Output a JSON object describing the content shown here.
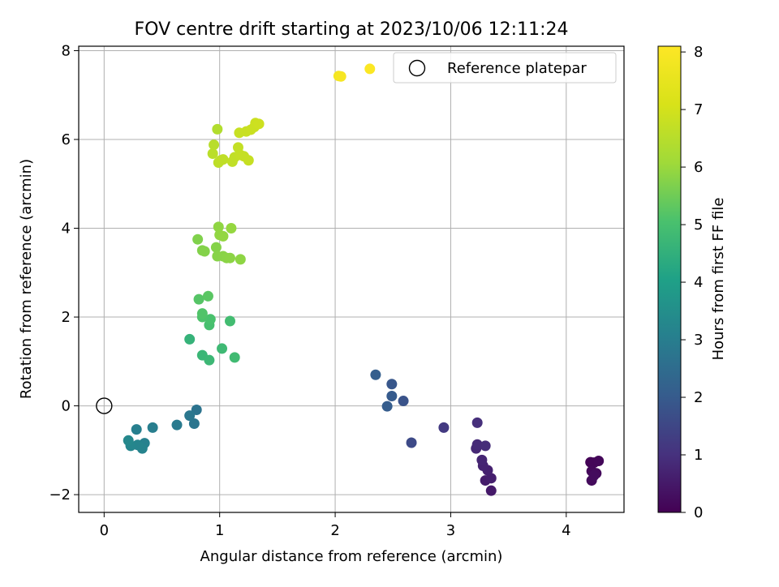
{
  "chart_data": {
    "type": "scatter",
    "title": "FOV centre drift starting at 2023/10/06 12:11:24",
    "xlabel": "Angular distance from reference (arcmin)",
    "ylabel": "Rotation from reference (arcmin)",
    "xlim": [
      -0.22,
      4.5
    ],
    "ylim": [
      -2.4,
      8.1
    ],
    "xticks": [
      0,
      1,
      2,
      3,
      4
    ],
    "yticks": [
      -2,
      0,
      2,
      4,
      6,
      8
    ],
    "ytick_labels": [
      "−2",
      "0",
      "2",
      "4",
      "6",
      "8"
    ],
    "grid": true,
    "legend": {
      "position": "top-right",
      "entries": [
        "Reference platepar"
      ]
    },
    "reference_point": {
      "x": 0,
      "y": 0,
      "label": "Reference platepar"
    },
    "colorbar": {
      "label": "Hours from first FF file",
      "range": [
        0,
        8.1
      ],
      "ticks": [
        0,
        1,
        2,
        3,
        4,
        5,
        6,
        7,
        8
      ],
      "colormap": "viridis"
    },
    "points": [
      {
        "x": 4.21,
        "y": -1.27,
        "c": 0.05
      },
      {
        "x": 4.24,
        "y": -1.28,
        "c": 0.1
      },
      {
        "x": 4.28,
        "y": -1.24,
        "c": 0.12
      },
      {
        "x": 4.22,
        "y": -1.47,
        "c": 0.15
      },
      {
        "x": 4.26,
        "y": -1.52,
        "c": 0.18
      },
      {
        "x": 4.22,
        "y": -1.68,
        "c": 0.2
      },
      {
        "x": 4.24,
        "y": -1.57,
        "c": 0.22
      },
      {
        "x": 3.35,
        "y": -1.91,
        "c": 0.5
      },
      {
        "x": 3.3,
        "y": -1.68,
        "c": 0.55
      },
      {
        "x": 3.35,
        "y": -1.63,
        "c": 0.6
      },
      {
        "x": 3.32,
        "y": -1.45,
        "c": 0.65
      },
      {
        "x": 3.28,
        "y": -1.35,
        "c": 0.7
      },
      {
        "x": 3.27,
        "y": -1.22,
        "c": 0.75
      },
      {
        "x": 3.22,
        "y": -0.96,
        "c": 0.8
      },
      {
        "x": 3.23,
        "y": -0.87,
        "c": 0.85
      },
      {
        "x": 3.3,
        "y": -0.9,
        "c": 0.9
      },
      {
        "x": 3.23,
        "y": -0.38,
        "c": 0.95
      },
      {
        "x": 2.94,
        "y": -0.49,
        "c": 1.2
      },
      {
        "x": 2.66,
        "y": -0.83,
        "c": 1.6
      },
      {
        "x": 2.59,
        "y": 0.11,
        "c": 1.8
      },
      {
        "x": 2.49,
        "y": 0.49,
        "c": 1.9
      },
      {
        "x": 2.49,
        "y": 0.22,
        "c": 2.0
      },
      {
        "x": 2.45,
        "y": -0.01,
        "c": 2.05
      },
      {
        "x": 2.35,
        "y": 0.7,
        "c": 2.1
      },
      {
        "x": 0.8,
        "y": -0.09,
        "c": 2.7
      },
      {
        "x": 0.78,
        "y": -0.4,
        "c": 2.75
      },
      {
        "x": 0.74,
        "y": -0.22,
        "c": 2.8
      },
      {
        "x": 0.63,
        "y": -0.43,
        "c": 2.9
      },
      {
        "x": 0.42,
        "y": -0.49,
        "c": 3.0
      },
      {
        "x": 0.28,
        "y": -0.53,
        "c": 3.05
      },
      {
        "x": 0.35,
        "y": -0.84,
        "c": 3.1
      },
      {
        "x": 0.33,
        "y": -0.96,
        "c": 3.15
      },
      {
        "x": 0.29,
        "y": -0.88,
        "c": 3.2
      },
      {
        "x": 0.23,
        "y": -0.9,
        "c": 3.25
      },
      {
        "x": 0.21,
        "y": -0.78,
        "c": 3.3
      },
      {
        "x": 0.74,
        "y": 1.5,
        "c": 4.6
      },
      {
        "x": 0.85,
        "y": 1.14,
        "c": 4.7
      },
      {
        "x": 0.91,
        "y": 1.03,
        "c": 4.75
      },
      {
        "x": 1.02,
        "y": 1.29,
        "c": 4.8
      },
      {
        "x": 1.13,
        "y": 1.09,
        "c": 4.85
      },
      {
        "x": 1.09,
        "y": 1.91,
        "c": 4.9
      },
      {
        "x": 0.91,
        "y": 1.82,
        "c": 5.0
      },
      {
        "x": 0.92,
        "y": 1.95,
        "c": 5.05
      },
      {
        "x": 0.85,
        "y": 2.0,
        "c": 5.1
      },
      {
        "x": 0.85,
        "y": 2.08,
        "c": 5.15
      },
      {
        "x": 0.82,
        "y": 2.4,
        "c": 5.2
      },
      {
        "x": 0.9,
        "y": 2.47,
        "c": 5.25
      },
      {
        "x": 0.81,
        "y": 3.75,
        "c": 5.7
      },
      {
        "x": 0.85,
        "y": 3.5,
        "c": 5.72
      },
      {
        "x": 0.87,
        "y": 3.48,
        "c": 5.74
      },
      {
        "x": 0.97,
        "y": 3.57,
        "c": 5.76
      },
      {
        "x": 0.98,
        "y": 3.37,
        "c": 5.78
      },
      {
        "x": 1.03,
        "y": 3.37,
        "c": 5.8
      },
      {
        "x": 1.06,
        "y": 3.33,
        "c": 5.82
      },
      {
        "x": 1.09,
        "y": 3.33,
        "c": 5.84
      },
      {
        "x": 1.18,
        "y": 3.3,
        "c": 5.86
      },
      {
        "x": 0.99,
        "y": 4.03,
        "c": 5.88
      },
      {
        "x": 1.0,
        "y": 3.85,
        "c": 5.9
      },
      {
        "x": 1.03,
        "y": 3.82,
        "c": 5.92
      },
      {
        "x": 1.1,
        "y": 4.0,
        "c": 5.94
      },
      {
        "x": 0.98,
        "y": 6.23,
        "c": 6.4
      },
      {
        "x": 0.95,
        "y": 5.88,
        "c": 6.5
      },
      {
        "x": 0.94,
        "y": 5.68,
        "c": 6.55
      },
      {
        "x": 0.99,
        "y": 5.48,
        "c": 6.6
      },
      {
        "x": 1.01,
        "y": 5.53,
        "c": 6.62
      },
      {
        "x": 1.03,
        "y": 5.55,
        "c": 6.64
      },
      {
        "x": 1.11,
        "y": 5.5,
        "c": 6.66
      },
      {
        "x": 1.13,
        "y": 5.6,
        "c": 6.68
      },
      {
        "x": 1.16,
        "y": 5.82,
        "c": 6.7
      },
      {
        "x": 1.18,
        "y": 5.65,
        "c": 6.72
      },
      {
        "x": 1.21,
        "y": 5.62,
        "c": 6.74
      },
      {
        "x": 1.25,
        "y": 5.53,
        "c": 6.76
      },
      {
        "x": 1.17,
        "y": 6.15,
        "c": 6.78
      },
      {
        "x": 1.23,
        "y": 6.18,
        "c": 6.8
      },
      {
        "x": 1.27,
        "y": 6.22,
        "c": 6.82
      },
      {
        "x": 1.3,
        "y": 6.28,
        "c": 6.84
      },
      {
        "x": 1.31,
        "y": 6.37,
        "c": 6.86
      },
      {
        "x": 1.34,
        "y": 6.35,
        "c": 6.88
      },
      {
        "x": 2.03,
        "y": 7.43,
        "c": 7.85
      },
      {
        "x": 2.05,
        "y": 7.42,
        "c": 7.9
      },
      {
        "x": 2.3,
        "y": 7.59,
        "c": 8.05
      }
    ]
  }
}
